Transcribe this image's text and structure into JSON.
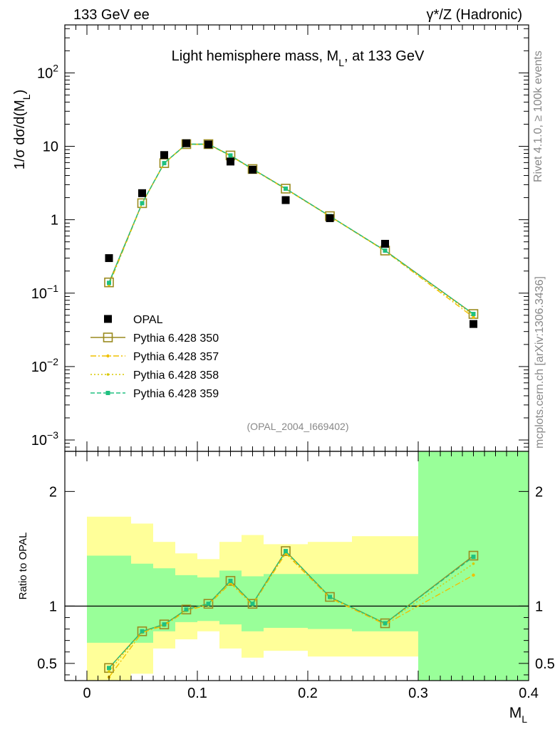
{
  "header": {
    "left": "133 GeV ee",
    "right": "γ*/Z (Hadronic)"
  },
  "side_labels": {
    "rivet": "Rivet 4.1.0, ≥ 100k events",
    "mcplots": "mcplots.cern.ch [arXiv:1306.3436]"
  },
  "chart_data": [
    {
      "type": "line",
      "panel": "main",
      "title": "Light hemisphere mass, M_L, at 133 GeV",
      "title_main": "Light hemisphere mass, M",
      "title_sub": "L",
      "title_tail": ", at 133 GeV",
      "ylabel": "1/σ  dσ/d(M_L)",
      "ylabel_main": "1/σ  dσ/d(M",
      "ylabel_sub": "L",
      "ylabel_tail": ")",
      "yscale": "log",
      "ylim": [
        0.0007,
        450
      ],
      "xlim": [
        -0.02,
        0.4
      ],
      "y_ticks": [
        {
          "value": 0.001,
          "base": "10",
          "exp": "−3"
        },
        {
          "value": 0.01,
          "base": "10",
          "exp": "−2"
        },
        {
          "value": 0.1,
          "base": "10",
          "exp": "−1"
        },
        {
          "value": 1,
          "base": "1",
          "exp": ""
        },
        {
          "value": 10,
          "base": "10",
          "exp": ""
        },
        {
          "value": 100,
          "base": "10",
          "exp": "2"
        }
      ],
      "watermark": "(OPAL_2004_I669402)",
      "legend_position": "lower-left",
      "data": {
        "name": "OPAL",
        "x": [
          0.02,
          0.05,
          0.07,
          0.09,
          0.11,
          0.13,
          0.15,
          0.18,
          0.22,
          0.27,
          0.35
        ],
        "y": [
          0.3,
          2.3,
          7.6,
          11.0,
          10.6,
          6.2,
          4.8,
          1.85,
          1.05,
          0.47,
          0.038
        ]
      },
      "series": [
        {
          "name": "Pythia 6.428 350",
          "color": "#9a8a1e",
          "style": "solid",
          "marker": "open-square",
          "x": [
            0.02,
            0.05,
            0.07,
            0.09,
            0.11,
            0.13,
            0.15,
            0.18,
            0.22,
            0.27,
            0.35
          ],
          "y": [
            0.14,
            1.68,
            5.9,
            10.7,
            10.7,
            7.5,
            4.9,
            2.65,
            1.12,
            0.38,
            0.052
          ]
        },
        {
          "name": "Pythia 6.428 357",
          "color": "#f0c000",
          "style": "dashdot",
          "marker": "star",
          "x": [
            0.02,
            0.05,
            0.07,
            0.09,
            0.11,
            0.13,
            0.15,
            0.18,
            0.22,
            0.27,
            0.35
          ],
          "y": [
            0.13,
            1.66,
            5.85,
            10.6,
            10.6,
            7.4,
            4.85,
            2.62,
            1.11,
            0.375,
            0.047
          ]
        },
        {
          "name": "Pythia 6.428 358",
          "color": "#d8c800",
          "style": "dotted",
          "marker": "dot",
          "x": [
            0.02,
            0.05,
            0.07,
            0.09,
            0.11,
            0.13,
            0.15,
            0.18,
            0.22,
            0.27,
            0.35
          ],
          "y": [
            0.135,
            1.67,
            5.88,
            10.65,
            10.65,
            7.45,
            4.88,
            2.63,
            1.115,
            0.378,
            0.05
          ]
        },
        {
          "name": "Pythia 6.428 359",
          "color": "#20c080",
          "style": "dashed",
          "marker": "filled-square",
          "x": [
            0.02,
            0.05,
            0.07,
            0.09,
            0.11,
            0.13,
            0.15,
            0.18,
            0.22,
            0.27,
            0.35
          ],
          "y": [
            0.138,
            1.68,
            5.9,
            10.7,
            10.7,
            7.5,
            4.9,
            2.65,
            1.12,
            0.38,
            0.052
          ]
        }
      ]
    },
    {
      "type": "line",
      "panel": "ratio",
      "ylabel": "Ratio to OPAL",
      "xlabel": "M_L",
      "xlabel_main": "M",
      "xlabel_sub": "L",
      "ylim": [
        0.35,
        2.35
      ],
      "xlim": [
        -0.02,
        0.4
      ],
      "y_ticks": [
        "0.5",
        "1",
        "2"
      ],
      "x_ticks": [
        "0",
        "0.1",
        "0.2",
        "0.3",
        "0.4"
      ],
      "bands": {
        "edges": [
          0.0,
          0.04,
          0.06,
          0.08,
          0.1,
          0.12,
          0.14,
          0.16,
          0.2,
          0.24,
          0.3,
          0.4
        ],
        "green_low": [
          0.68,
          0.68,
          0.78,
          0.86,
          0.87,
          0.84,
          0.78,
          0.81,
          0.8,
          0.78,
          0.35
        ],
        "green_high": [
          1.44,
          1.37,
          1.33,
          1.27,
          1.25,
          1.31,
          1.26,
          1.28,
          1.28,
          1.28,
          2.35
        ],
        "yellow_low": [
          0.35,
          0.41,
          0.63,
          0.71,
          0.78,
          0.63,
          0.55,
          0.61,
          0.56,
          0.56,
          0.35
        ],
        "yellow_high": [
          1.78,
          1.72,
          1.56,
          1.46,
          1.41,
          1.56,
          1.62,
          1.54,
          1.56,
          1.61,
          2.35
        ]
      },
      "series": [
        {
          "name": "Pythia 6.428 350",
          "color": "#9a8a1e",
          "style": "solid",
          "marker": "open-square",
          "x": [
            0.02,
            0.05,
            0.07,
            0.09,
            0.11,
            0.13,
            0.15,
            0.18,
            0.22,
            0.27,
            0.35
          ],
          "y": [
            0.46,
            0.78,
            0.84,
            0.97,
            1.02,
            1.22,
            1.02,
            1.48,
            1.08,
            0.85,
            1.44
          ]
        },
        {
          "name": "Pythia 6.428 357",
          "color": "#f0c000",
          "style": "dashdot",
          "marker": "star",
          "x": [
            0.02,
            0.05,
            0.07,
            0.09,
            0.11,
            0.13,
            0.15,
            0.18,
            0.22,
            0.27,
            0.35
          ],
          "y": [
            0.38,
            0.77,
            0.83,
            0.96,
            1.01,
            1.2,
            1.01,
            1.46,
            1.07,
            0.84,
            1.27
          ]
        },
        {
          "name": "Pythia 6.428 358",
          "color": "#d8c800",
          "style": "dotted",
          "marker": "dot",
          "x": [
            0.02,
            0.05,
            0.07,
            0.09,
            0.11,
            0.13,
            0.15,
            0.18,
            0.22,
            0.27,
            0.35
          ],
          "y": [
            0.43,
            0.78,
            0.84,
            0.97,
            1.02,
            1.21,
            1.02,
            1.47,
            1.08,
            0.85,
            1.37
          ]
        },
        {
          "name": "Pythia 6.428 359",
          "color": "#20c080",
          "style": "dashed",
          "marker": "filled-square",
          "x": [
            0.02,
            0.05,
            0.07,
            0.09,
            0.11,
            0.13,
            0.15,
            0.18,
            0.22,
            0.27,
            0.35
          ],
          "y": [
            0.46,
            0.78,
            0.84,
            0.97,
            1.02,
            1.22,
            1.02,
            1.48,
            1.08,
            0.85,
            1.43
          ]
        }
      ]
    }
  ]
}
